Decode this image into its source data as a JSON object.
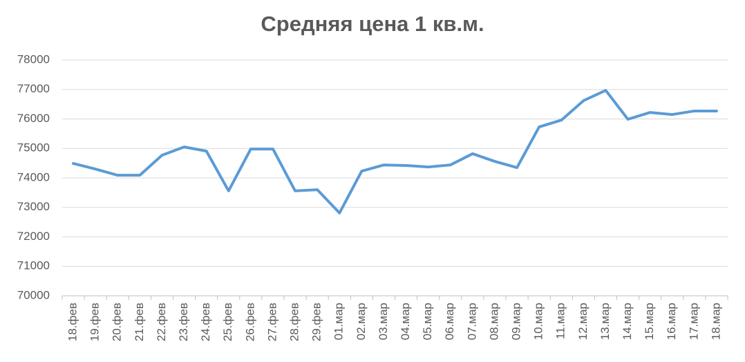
{
  "chart_data": {
    "type": "line",
    "title": "Средняя цена 1 кв.м.",
    "categories": [
      "18.фев",
      "19.фев",
      "20.фев",
      "21.фев",
      "22.фев",
      "23.фев",
      "24.фев",
      "25.фев",
      "26.фев",
      "27.фев",
      "28.фев",
      "29.фев",
      "01.мар",
      "02.мар",
      "03.мар",
      "04.мар",
      "05.мар",
      "06.мар",
      "07.мар",
      "08.мар",
      "09.мар",
      "10.мар",
      "11.мар",
      "12.мар",
      "13.мар",
      "14.мар",
      "15.мар",
      "16.мар",
      "17.мар",
      "18.мар"
    ],
    "series": [
      {
        "color": "#5b9bd5",
        "values": [
          74490,
          74300,
          74090,
          74090,
          74770,
          75050,
          74910,
          73560,
          74980,
          74980,
          73560,
          73600,
          72810,
          74230,
          74440,
          74420,
          74370,
          74440,
          74820,
          74560,
          74350,
          75730,
          75960,
          76620,
          76970,
          75990,
          76220,
          76150,
          76270,
          76270
        ]
      }
    ],
    "ylim": [
      70000,
      78000
    ],
    "yticks": [
      70000,
      71000,
      72000,
      73000,
      74000,
      75000,
      76000,
      77000,
      78000
    ],
    "grid": true
  }
}
